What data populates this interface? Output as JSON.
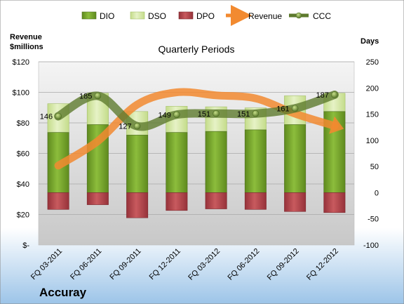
{
  "company": "Accuray",
  "legend": [
    "DIO",
    "DSO",
    "DPO",
    "Revenue",
    "CCC"
  ],
  "left_axis_title": [
    "Revenue",
    "$millions"
  ],
  "right_axis_title": "Days",
  "colors": {
    "dio": "#76a52c",
    "dso": "#d6e8a8",
    "dpo": "#b5474b",
    "revenue": "#f28a30",
    "ccc": "#5e7a2e"
  },
  "chart_data": {
    "type": "bar",
    "title": "Quarterly Periods",
    "categories": [
      "FQ 03-2011",
      "FQ 06-2011",
      "FQ 09-2011",
      "FQ 12-2011",
      "FQ 03-2012",
      "FQ 06-2012",
      "FQ 09-2012",
      "FQ 12-2012"
    ],
    "left_axis": {
      "label": "Revenue $millions",
      "ylim": [
        0,
        120
      ],
      "ticks": [
        "$-",
        "$20",
        "$40",
        "$60",
        "$80",
        "$100",
        "$120"
      ]
    },
    "right_axis": {
      "label": "Days",
      "ylim": [
        -100,
        250
      ],
      "ticks": [
        "-100",
        "-50",
        "0",
        "50",
        "100",
        "150",
        "200",
        "250"
      ]
    },
    "series": [
      {
        "name": "DIO",
        "type": "stacked-bar",
        "axis": "right",
        "values": [
          115,
          130,
          110,
          115,
          117,
          120,
          130,
          155
        ]
      },
      {
        "name": "DSO",
        "type": "stacked-bar",
        "axis": "right",
        "values": [
          55,
          60,
          45,
          50,
          47,
          42,
          55,
          35
        ]
      },
      {
        "name": "DPO",
        "type": "bar",
        "axis": "right",
        "values": [
          -32,
          -23,
          -48,
          -34,
          -31,
          -32,
          -36,
          -38
        ]
      },
      {
        "name": "Revenue",
        "type": "line",
        "axis": "left",
        "values": [
          52,
          68,
          92,
          100,
          98,
          96,
          86,
          78
        ]
      },
      {
        "name": "CCC",
        "type": "line",
        "axis": "right",
        "values": [
          146,
          185,
          127,
          149,
          151,
          151,
          161,
          187
        ]
      }
    ],
    "ccc_labels": [
      "146",
      "185",
      "127",
      "149",
      "151",
      "151",
      "161",
      "187"
    ],
    "grid": true,
    "legend_position": "top"
  }
}
